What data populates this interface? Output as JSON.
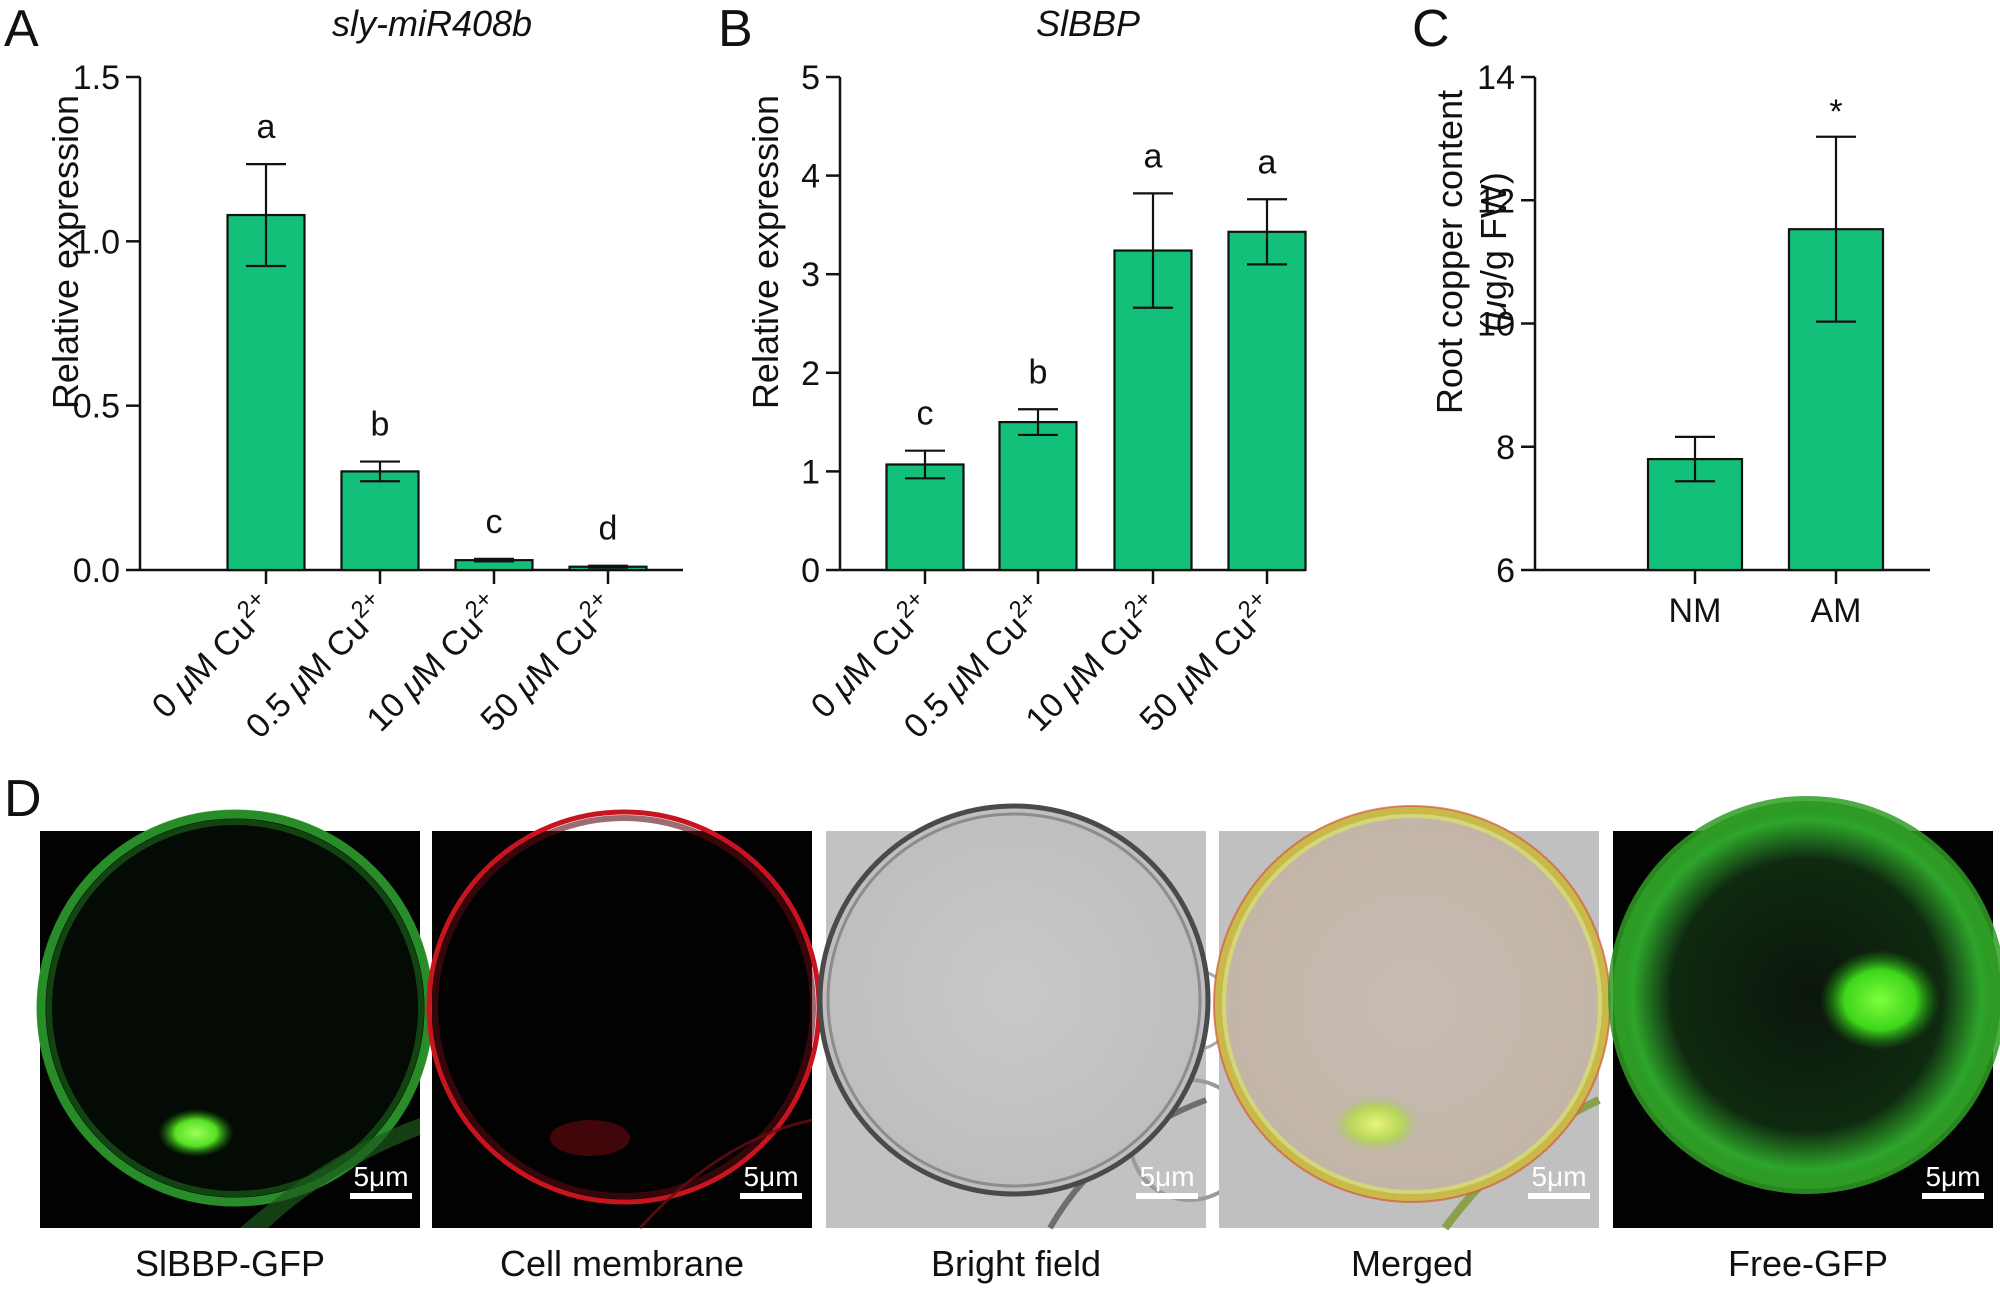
{
  "colors": {
    "bar": "#12c07a",
    "axis": "#111111"
  },
  "chart_data": [
    {
      "panel": "A",
      "type": "bar",
      "title": "sly-miR408b",
      "ylabel": "Relative expression",
      "categories": [
        "0 μM Cu2+",
        "0.5 μM Cu2+",
        "10 μM Cu2+",
        "50 μM Cu2+"
      ],
      "category_labels": [
        {
          "num": "0 ",
          "unit": "μ",
          "rest": "M Cu",
          "sup": "2+"
        },
        {
          "num": "0.5 ",
          "unit": "μ",
          "rest": "M Cu",
          "sup": "2+"
        },
        {
          "num": "10 ",
          "unit": "μ",
          "rest": "M Cu",
          "sup": "2+"
        },
        {
          "num": "50 ",
          "unit": "μ",
          "rest": "M Cu",
          "sup": "2+"
        }
      ],
      "values": [
        1.08,
        0.3,
        0.03,
        0.01
      ],
      "errors": [
        0.155,
        0.03,
        0.004,
        0.003
      ],
      "annotations": [
        "a",
        "b",
        "c",
        "d"
      ],
      "ylim": [
        0,
        1.5
      ],
      "yticks": [
        "0.0",
        "0.5",
        "1.0",
        "1.5"
      ],
      "ytick_values": [
        0,
        0.5,
        1.0,
        1.5
      ]
    },
    {
      "panel": "B",
      "type": "bar",
      "title": "SlBBP",
      "ylabel": "Relative expression",
      "categories": [
        "0 μM Cu2+",
        "0.5 μM Cu2+",
        "10 μM Cu2+",
        "50 μM Cu2+"
      ],
      "category_labels": [
        {
          "num": "0 ",
          "unit": "μ",
          "rest": "M Cu",
          "sup": "2+"
        },
        {
          "num": "0.5 ",
          "unit": "μ",
          "rest": "M Cu",
          "sup": "2+"
        },
        {
          "num": "10 ",
          "unit": "μ",
          "rest": "M Cu",
          "sup": "2+"
        },
        {
          "num": "50 ",
          "unit": "μ",
          "rest": "M Cu",
          "sup": "2+"
        }
      ],
      "values": [
        1.07,
        1.5,
        3.24,
        3.43
      ],
      "errors": [
        0.14,
        0.13,
        0.58,
        0.33
      ],
      "annotations": [
        "c",
        "b",
        "a",
        "a"
      ],
      "ylim": [
        0,
        5
      ],
      "yticks": [
        "0",
        "1",
        "2",
        "3",
        "4",
        "5"
      ],
      "ytick_values": [
        0,
        1,
        2,
        3,
        4,
        5
      ]
    },
    {
      "panel": "C",
      "type": "bar",
      "title": "",
      "ylabel_line1": "Root copper content",
      "ylabel_line2_pre": "(",
      "ylabel_line2_mu": "μ",
      "ylabel_line2_post": "g/g FW)",
      "categories": [
        "NM",
        "AM"
      ],
      "values": [
        7.8,
        11.53
      ],
      "errors": [
        0.36,
        1.5
      ],
      "annotations": [
        "",
        "*"
      ],
      "ylim": [
        6,
        14
      ],
      "yticks": [
        "6",
        "8",
        "10",
        "12",
        "14"
      ],
      "ytick_values": [
        6,
        8,
        10,
        12,
        14
      ]
    }
  ],
  "panel_d": {
    "letter": "D",
    "scale_bar_label": "5μm",
    "images": [
      {
        "caption": "SlBBP-GFP",
        "kind": "gfp-membrane"
      },
      {
        "caption": "Cell membrane",
        "kind": "red-membrane"
      },
      {
        "caption": "Bright field",
        "kind": "bright-field"
      },
      {
        "caption": "Merged",
        "kind": "merged"
      },
      {
        "caption": "Free-GFP",
        "kind": "free-gfp"
      }
    ]
  }
}
